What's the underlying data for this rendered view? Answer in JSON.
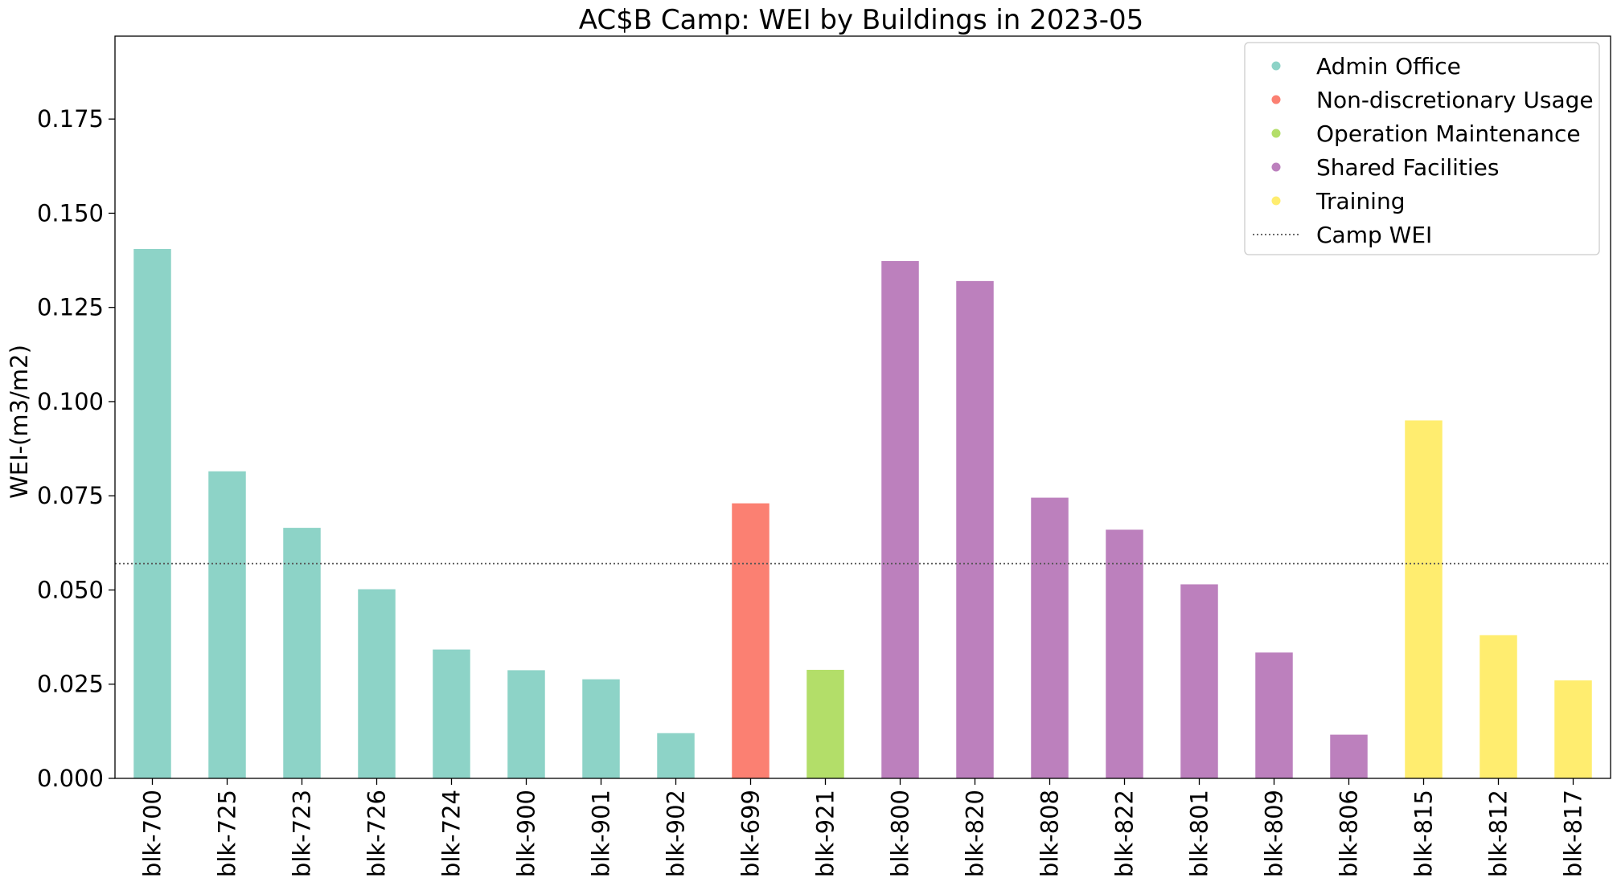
{
  "chart_data": {
    "type": "bar",
    "title": "AC$B Camp: WEI by Buildings in 2023-05",
    "xlabel": "",
    "ylabel": "WEI-(m3/m2)",
    "ylim": [
      0,
      0.197
    ],
    "yticks": [
      "0.000",
      "0.025",
      "0.050",
      "0.075",
      "0.100",
      "0.125",
      "0.150",
      "0.175"
    ],
    "grid": false,
    "legend_position": "top-right",
    "categories": [
      "blk-700",
      "blk-725",
      "blk-723",
      "blk-726",
      "blk-724",
      "blk-900",
      "blk-901",
      "blk-902",
      "blk-699",
      "blk-921",
      "blk-800",
      "blk-820",
      "blk-808",
      "blk-822",
      "blk-801",
      "blk-809",
      "blk-806",
      "blk-815",
      "blk-812",
      "blk-817"
    ],
    "values": [
      0.1405,
      0.0815,
      0.0665,
      0.0502,
      0.0342,
      0.0287,
      0.0263,
      0.012,
      0.073,
      0.0288,
      0.1373,
      0.132,
      0.0745,
      0.066,
      0.0515,
      0.0334,
      0.0116,
      0.095,
      0.038,
      0.026
    ],
    "groups": [
      "Admin Office",
      "Admin Office",
      "Admin Office",
      "Admin Office",
      "Admin Office",
      "Admin Office",
      "Admin Office",
      "Admin Office",
      "Non-discretionary Usage",
      "Operation Maintenance",
      "Shared Facilities",
      "Shared Facilities",
      "Shared Facilities",
      "Shared Facilities",
      "Shared Facilities",
      "Shared Facilities",
      "Shared Facilities",
      "Training",
      "Training",
      "Training"
    ],
    "legend": [
      {
        "name": "Admin Office",
        "color": "#8dd3c7"
      },
      {
        "name": "Non-discretionary Usage",
        "color": "#fb8072"
      },
      {
        "name": "Operation Maintenance",
        "color": "#b3de69"
      },
      {
        "name": "Shared Facilities",
        "color": "#bc80bd"
      },
      {
        "name": "Training",
        "color": "#ffed6f"
      }
    ],
    "reference_line": {
      "name": "Camp WEI",
      "value": 0.057,
      "color": "#555555",
      "style": "dotted"
    }
  }
}
